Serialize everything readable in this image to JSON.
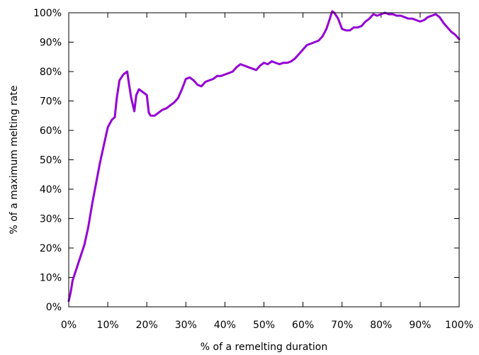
{
  "chart_data": {
    "type": "line",
    "title": "",
    "xlabel": "% of a remelting duration",
    "ylabel": "% of a maximum melting rate",
    "xlim": [
      0,
      100
    ],
    "ylim": [
      0,
      100
    ],
    "grid": false,
    "legend": "none",
    "x_ticks": [
      0,
      10,
      20,
      30,
      40,
      50,
      60,
      70,
      80,
      90,
      100
    ],
    "y_ticks": [
      0,
      10,
      20,
      30,
      40,
      50,
      60,
      70,
      80,
      90,
      100
    ],
    "x_tick_labels": [
      "0%",
      "10%",
      "20%",
      "30%",
      "40%",
      "50%",
      "60%",
      "70%",
      "80%",
      "90%",
      "100%"
    ],
    "y_tick_labels": [
      "0%",
      "10%",
      "20%",
      "30%",
      "40%",
      "50%",
      "60%",
      "70%",
      "80%",
      "90%",
      "100%"
    ],
    "line_color": "#9400D3",
    "series": [
      {
        "x": [
          0,
          0.5,
          1,
          2,
          3,
          4,
          5,
          6,
          7,
          8,
          9,
          10,
          11,
          11.8,
          12.3,
          13,
          14,
          15,
          15.4,
          16,
          16.8,
          17.3,
          18,
          19,
          20,
          20.5,
          21,
          22,
          23,
          24,
          25,
          26,
          27,
          28,
          29,
          30,
          31,
          32,
          33,
          34,
          35,
          36,
          37,
          38,
          39,
          40,
          41,
          42,
          43,
          44,
          45,
          46,
          47,
          48,
          49,
          50,
          51,
          52,
          53,
          54,
          55,
          56,
          57,
          58,
          59,
          60,
          61,
          62,
          63,
          64,
          65,
          66,
          67,
          67.5,
          68,
          69,
          70,
          71,
          72,
          73,
          74,
          75,
          76,
          77,
          78,
          79,
          80,
          81,
          82,
          83,
          84,
          85,
          86,
          87,
          88,
          89,
          90,
          91,
          92,
          93,
          94,
          95,
          96,
          97,
          98,
          99,
          100
        ],
        "values": [
          2,
          5,
          9,
          13,
          17,
          21,
          27,
          35,
          42,
          49,
          55,
          61,
          63.5,
          64.5,
          71,
          77,
          79,
          80,
          76,
          71,
          66.5,
          72,
          74,
          73,
          72,
          66,
          65,
          65,
          66,
          67,
          67.5,
          68.5,
          69.5,
          71,
          74,
          77.5,
          78,
          77,
          75.5,
          75,
          76.5,
          77,
          77.5,
          78.5,
          78.5,
          79,
          79.5,
          80,
          81.5,
          82.5,
          82,
          81.5,
          81,
          80.5,
          82,
          83,
          82.5,
          83.5,
          83,
          82.5,
          83,
          83,
          83.5,
          84.5,
          86,
          87.5,
          89,
          89.5,
          90,
          90.5,
          92,
          94.5,
          98.5,
          100.5,
          100,
          98,
          94.5,
          94,
          94,
          95,
          95,
          95.5,
          97,
          98,
          99.5,
          99,
          99.5,
          100,
          99.5,
          99.5,
          99,
          99,
          98.5,
          98,
          98,
          97.5,
          97,
          97.5,
          98.5,
          99,
          99.5,
          98.5,
          96.5,
          95,
          93.5,
          92.5,
          91
        ]
      }
    ]
  }
}
